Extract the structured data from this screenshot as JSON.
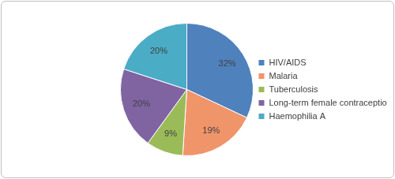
{
  "chart_data": {
    "type": "pie",
    "categories": [
      "HIV/AIDS",
      "Malaria",
      "Tuberculosis",
      "Long-term female contraception",
      "Haemophilia A"
    ],
    "values": [
      32,
      19,
      9,
      20,
      20
    ],
    "value_labels": [
      "32%",
      "19%",
      "9%",
      "20%",
      "20%"
    ],
    "colors": [
      "#4f81bd",
      "#f0946a",
      "#9bbb59",
      "#8064a2",
      "#4bacc6"
    ],
    "legend": "right",
    "data_labels": true
  }
}
